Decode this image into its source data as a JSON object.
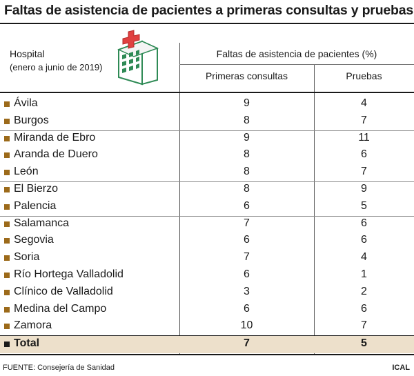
{
  "title": "Faltas de asistencia de pacientes a primeras consultas y pruebas",
  "hospital_header": {
    "label": "Hospital",
    "period": "(enero a junio de 2019)"
  },
  "group_header": "Faltas de asistencia de pacientes (%)",
  "columns": [
    "Primeras consultas",
    "Pruebas"
  ],
  "colors": {
    "bullet": "#9c6a1a",
    "total_bg": "#ede0cb",
    "icon_green": "#2e8a55",
    "icon_cross": "#e04040"
  },
  "icon": "hospital-building-icon",
  "chart_data": {
    "type": "table",
    "title": "Faltas de asistencia de pacientes a primeras consultas y pruebas",
    "columns": [
      "Primeras consultas",
      "Pruebas"
    ],
    "rows": [
      {
        "hospital": "Ávila",
        "primeras_consultas": 9,
        "pruebas": 4
      },
      {
        "hospital": "Burgos",
        "primeras_consultas": 8,
        "pruebas": 7
      },
      {
        "hospital": "Miranda de Ebro",
        "primeras_consultas": 9,
        "pruebas": 11
      },
      {
        "hospital": "Aranda de Duero",
        "primeras_consultas": 8,
        "pruebas": 6
      },
      {
        "hospital": "León",
        "primeras_consultas": 8,
        "pruebas": 7
      },
      {
        "hospital": "El Bierzo",
        "primeras_consultas": 8,
        "pruebas": 9
      },
      {
        "hospital": "Palencia",
        "primeras_consultas": 6,
        "pruebas": 5
      },
      {
        "hospital": "Salamanca",
        "primeras_consultas": 7,
        "pruebas": 6
      },
      {
        "hospital": "Segovia",
        "primeras_consultas": 6,
        "pruebas": 6
      },
      {
        "hospital": "Soria",
        "primeras_consultas": 7,
        "pruebas": 4
      },
      {
        "hospital": "Río Hortega Valladolid",
        "primeras_consultas": 6,
        "pruebas": 1
      },
      {
        "hospital": "Clínico de Valladolid",
        "primeras_consultas": 3,
        "pruebas": 2
      },
      {
        "hospital": "Medina del Campo",
        "primeras_consultas": 6,
        "pruebas": 6
      },
      {
        "hospital": "Zamora",
        "primeras_consultas": 10,
        "pruebas": 7
      }
    ],
    "total": {
      "hospital": "Total",
      "primeras_consultas": 7,
      "pruebas": 5
    }
  },
  "footer": {
    "source": "FUENTE: Consejería de Sanidad",
    "credit": "ICAL"
  }
}
